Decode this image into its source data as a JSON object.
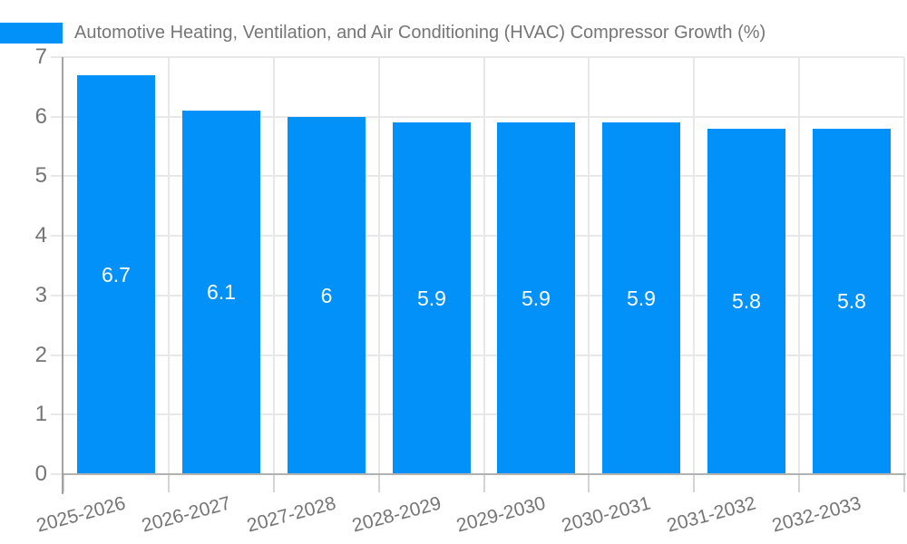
{
  "title": "Automotive Heating, Ventilation, and Air Conditioning (HVAC) Compressor Growth (%)",
  "legend": {
    "position": "top-left",
    "swatch_color": "#0291f8"
  },
  "chart_data": {
    "type": "bar",
    "title": "Automotive Heating, Ventilation, and Air Conditioning (HVAC) Compressor Growth (%)",
    "categories": [
      "2025-2026",
      "2026-2027",
      "2027-2028",
      "2028-2029",
      "2029-2030",
      "2030-2031",
      "2031-2032",
      "2032-2033"
    ],
    "values": [
      6.7,
      6.1,
      6,
      5.9,
      5.9,
      5.9,
      5.8,
      5.8
    ],
    "labels": [
      "6.7",
      "6.1",
      "6",
      "5.9",
      "5.9",
      "5.9",
      "5.8",
      "5.8"
    ],
    "xlabel": "",
    "ylabel": "",
    "ylim": [
      0,
      7
    ],
    "yticks": [
      0,
      1,
      2,
      3,
      4,
      5,
      6,
      7
    ],
    "grid": true,
    "legend_position": "top-left",
    "series_color": "#0291f8"
  },
  "colors": {
    "bar": "#0291f8",
    "grid": "#e8e8e8",
    "axis_y": "#a2a2a2",
    "axis_x": "#b2b2b2",
    "tick": "#d4d4d4",
    "label": "#757575",
    "value_label": "#ffffff",
    "background": "#ffffff"
  }
}
